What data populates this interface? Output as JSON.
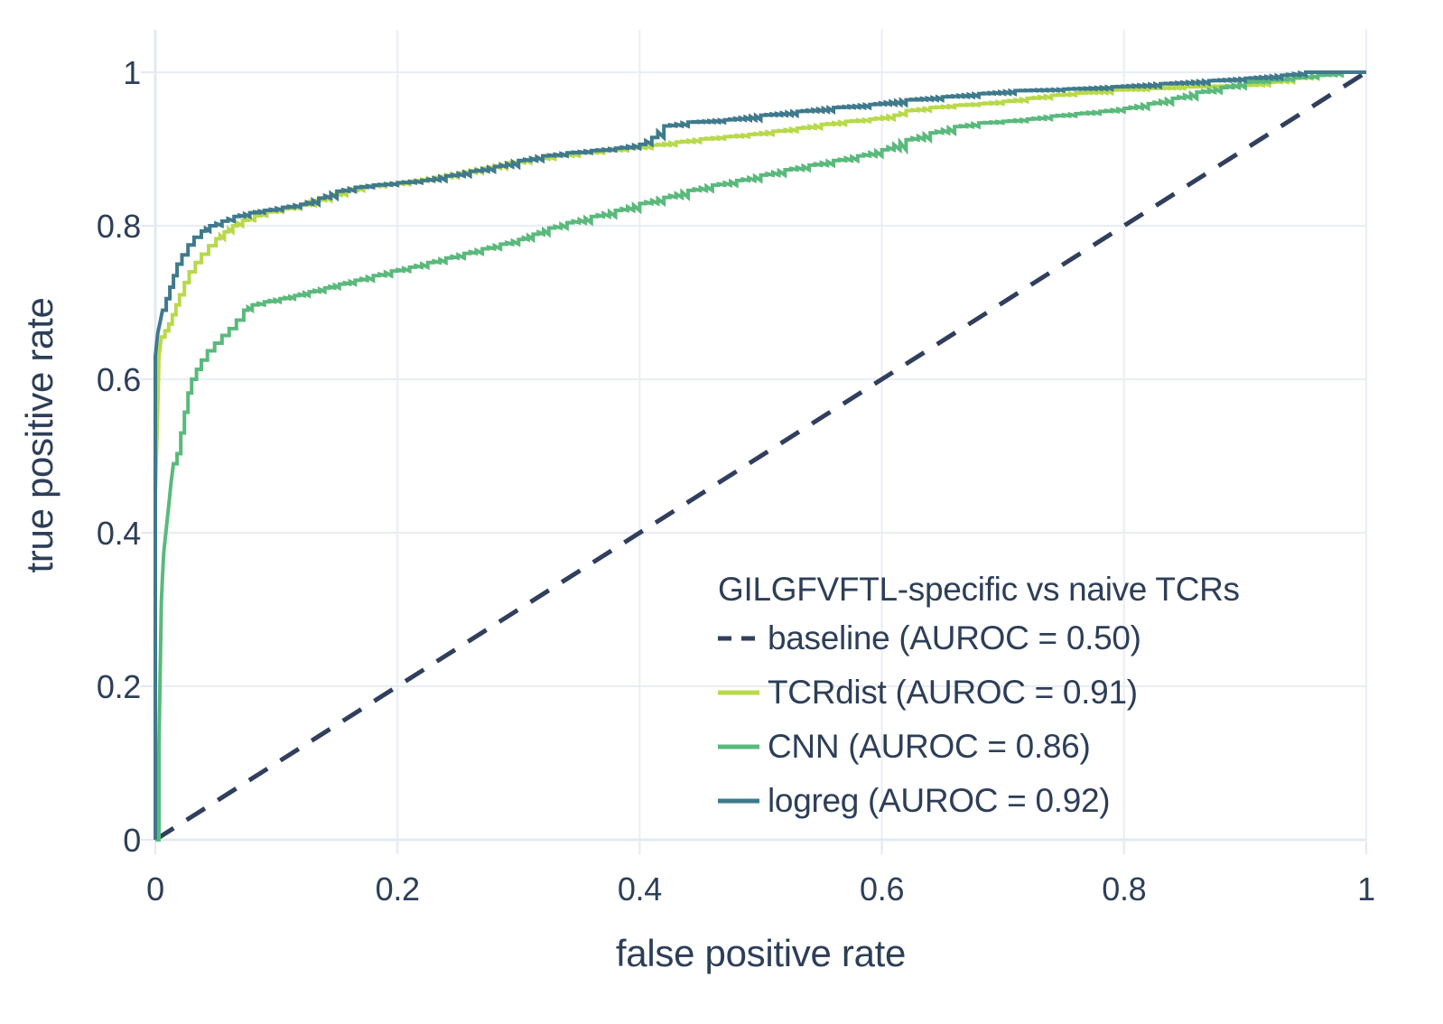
{
  "chart_data": {
    "type": "line",
    "subtype": "roc-curves",
    "title": "",
    "xlabel": "false positive rate",
    "ylabel": "true positive rate",
    "xlim": [
      0,
      1
    ],
    "ylim": [
      0,
      1
    ],
    "grid": true,
    "x_ticks": [
      0,
      0.2,
      0.4,
      0.6,
      0.8,
      1
    ],
    "x_tick_labels": [
      "0",
      "0.2",
      "0.4",
      "0.6",
      "0.8",
      "1"
    ],
    "y_ticks": [
      0,
      0.2,
      0.4,
      0.6,
      0.8,
      1
    ],
    "y_tick_labels": [
      "0",
      "0.2",
      "0.4",
      "0.6",
      "0.8",
      "1"
    ],
    "legend": {
      "title": "GILGFVFTL-specific vs naive TCRs",
      "position": "lower right"
    },
    "series": [
      {
        "name": "baseline",
        "auroc": 0.5,
        "legend_label": "baseline (AUROC = 0.50)",
        "style": "dashed",
        "color": "#303f5c",
        "points": [
          [
            0,
            0
          ],
          [
            1,
            1
          ]
        ]
      },
      {
        "name": "TCRdist",
        "auroc": 0.91,
        "legend_label": "TCRdist (AUROC = 0.91)",
        "style": "step",
        "color": "#b8d94a",
        "points": [
          [
            0,
            0
          ],
          [
            0,
            0.45
          ],
          [
            0.002,
            0.56
          ],
          [
            0.003,
            0.63
          ],
          [
            0.005,
            0.655
          ],
          [
            0.008,
            0.663
          ],
          [
            0.011,
            0.672
          ],
          [
            0.014,
            0.684
          ],
          [
            0.017,
            0.697
          ],
          [
            0.02,
            0.71
          ],
          [
            0.024,
            0.726
          ],
          [
            0.028,
            0.74
          ],
          [
            0.033,
            0.752
          ],
          [
            0.038,
            0.763
          ],
          [
            0.044,
            0.774
          ],
          [
            0.05,
            0.783
          ],
          [
            0.057,
            0.792
          ],
          [
            0.064,
            0.8
          ],
          [
            0.072,
            0.807
          ],
          [
            0.082,
            0.813
          ],
          [
            0.092,
            0.818
          ],
          [
            0.105,
            0.822
          ],
          [
            0.12,
            0.827
          ],
          [
            0.132,
            0.833
          ],
          [
            0.145,
            0.84
          ],
          [
            0.158,
            0.846
          ],
          [
            0.172,
            0.851
          ],
          [
            0.19,
            0.854
          ],
          [
            0.21,
            0.858
          ],
          [
            0.23,
            0.863
          ],
          [
            0.25,
            0.869
          ],
          [
            0.27,
            0.875
          ],
          [
            0.29,
            0.882
          ],
          [
            0.31,
            0.887
          ],
          [
            0.33,
            0.891
          ],
          [
            0.35,
            0.895
          ],
          [
            0.37,
            0.898
          ],
          [
            0.39,
            0.901
          ],
          [
            0.41,
            0.905
          ],
          [
            0.43,
            0.909
          ],
          [
            0.45,
            0.913
          ],
          [
            0.47,
            0.916
          ],
          [
            0.49,
            0.919
          ],
          [
            0.51,
            0.923
          ],
          [
            0.53,
            0.927
          ],
          [
            0.55,
            0.932
          ],
          [
            0.57,
            0.936
          ],
          [
            0.59,
            0.939
          ],
          [
            0.61,
            0.944
          ],
          [
            0.62,
            0.95
          ],
          [
            0.64,
            0.954
          ],
          [
            0.66,
            0.957
          ],
          [
            0.68,
            0.959
          ],
          [
            0.7,
            0.962
          ],
          [
            0.72,
            0.966
          ],
          [
            0.74,
            0.97
          ],
          [
            0.76,
            0.973
          ],
          [
            0.79,
            0.977
          ],
          [
            0.82,
            0.979
          ],
          [
            0.85,
            0.981
          ],
          [
            0.88,
            0.982
          ],
          [
            0.9,
            0.983
          ],
          [
            0.92,
            0.987
          ],
          [
            0.94,
            0.992
          ],
          [
            0.96,
            0.997
          ],
          [
            0.97,
            1
          ],
          [
            1,
            1
          ]
        ]
      },
      {
        "name": "CNN",
        "auroc": 0.86,
        "legend_label": "CNN (AUROC = 0.86)",
        "style": "step",
        "color": "#5ab97c",
        "points": [
          [
            0,
            0
          ],
          [
            0.003,
            0.12
          ],
          [
            0.004,
            0.22
          ],
          [
            0.005,
            0.31
          ],
          [
            0.006,
            0.345
          ],
          [
            0.007,
            0.375
          ],
          [
            0.009,
            0.405
          ],
          [
            0.011,
            0.435
          ],
          [
            0.013,
            0.465
          ],
          [
            0.015,
            0.49
          ],
          [
            0.018,
            0.503
          ],
          [
            0.021,
            0.53
          ],
          [
            0.024,
            0.557
          ],
          [
            0.027,
            0.582
          ],
          [
            0.03,
            0.6
          ],
          [
            0.034,
            0.613
          ],
          [
            0.038,
            0.625
          ],
          [
            0.043,
            0.637
          ],
          [
            0.049,
            0.647
          ],
          [
            0.055,
            0.657
          ],
          [
            0.061,
            0.666
          ],
          [
            0.067,
            0.677
          ],
          [
            0.073,
            0.69
          ],
          [
            0.08,
            0.697
          ],
          [
            0.09,
            0.701
          ],
          [
            0.103,
            0.705
          ],
          [
            0.115,
            0.709
          ],
          [
            0.127,
            0.714
          ],
          [
            0.14,
            0.719
          ],
          [
            0.152,
            0.724
          ],
          [
            0.165,
            0.729
          ],
          [
            0.18,
            0.735
          ],
          [
            0.195,
            0.741
          ],
          [
            0.21,
            0.746
          ],
          [
            0.225,
            0.752
          ],
          [
            0.24,
            0.758
          ],
          [
            0.255,
            0.764
          ],
          [
            0.27,
            0.77
          ],
          [
            0.285,
            0.776
          ],
          [
            0.3,
            0.782
          ],
          [
            0.312,
            0.789
          ],
          [
            0.325,
            0.797
          ],
          [
            0.34,
            0.804
          ],
          [
            0.36,
            0.812
          ],
          [
            0.38,
            0.82
          ],
          [
            0.4,
            0.829
          ],
          [
            0.42,
            0.837
          ],
          [
            0.44,
            0.846
          ],
          [
            0.46,
            0.853
          ],
          [
            0.48,
            0.859
          ],
          [
            0.5,
            0.866
          ],
          [
            0.52,
            0.873
          ],
          [
            0.54,
            0.879
          ],
          [
            0.56,
            0.885
          ],
          [
            0.58,
            0.891
          ],
          [
            0.6,
            0.899
          ],
          [
            0.62,
            0.912
          ],
          [
            0.64,
            0.921
          ],
          [
            0.66,
            0.929
          ],
          [
            0.68,
            0.934
          ],
          [
            0.7,
            0.936
          ],
          [
            0.72,
            0.939
          ],
          [
            0.74,
            0.943
          ],
          [
            0.76,
            0.946
          ],
          [
            0.78,
            0.949
          ],
          [
            0.8,
            0.953
          ],
          [
            0.82,
            0.959
          ],
          [
            0.84,
            0.966
          ],
          [
            0.86,
            0.974
          ],
          [
            0.88,
            0.98
          ],
          [
            0.9,
            0.987
          ],
          [
            0.92,
            0.99
          ],
          [
            0.94,
            0.993
          ],
          [
            0.96,
            0.996
          ],
          [
            0.98,
            1
          ],
          [
            1,
            1
          ]
        ]
      },
      {
        "name": "logreg",
        "auroc": 0.92,
        "legend_label": "logreg (AUROC = 0.92)",
        "style": "step",
        "color": "#3f7a8c",
        "points": [
          [
            0,
            0
          ],
          [
            0,
            0.63
          ],
          [
            0.002,
            0.66
          ],
          [
            0.004,
            0.675
          ],
          [
            0.006,
            0.69
          ],
          [
            0.009,
            0.705
          ],
          [
            0.012,
            0.72
          ],
          [
            0.015,
            0.735
          ],
          [
            0.018,
            0.75
          ],
          [
            0.022,
            0.762
          ],
          [
            0.027,
            0.775
          ],
          [
            0.032,
            0.785
          ],
          [
            0.038,
            0.793
          ],
          [
            0.045,
            0.8
          ],
          [
            0.055,
            0.806
          ],
          [
            0.065,
            0.812
          ],
          [
            0.078,
            0.817
          ],
          [
            0.09,
            0.82
          ],
          [
            0.105,
            0.824
          ],
          [
            0.12,
            0.828
          ],
          [
            0.135,
            0.836
          ],
          [
            0.15,
            0.845
          ],
          [
            0.165,
            0.85
          ],
          [
            0.18,
            0.853
          ],
          [
            0.2,
            0.856
          ],
          [
            0.22,
            0.859
          ],
          [
            0.24,
            0.865
          ],
          [
            0.26,
            0.871
          ],
          [
            0.28,
            0.877
          ],
          [
            0.3,
            0.885
          ],
          [
            0.32,
            0.891
          ],
          [
            0.34,
            0.895
          ],
          [
            0.36,
            0.898
          ],
          [
            0.38,
            0.901
          ],
          [
            0.4,
            0.906
          ],
          [
            0.41,
            0.915
          ],
          [
            0.42,
            0.93
          ],
          [
            0.44,
            0.935
          ],
          [
            0.47,
            0.938
          ],
          [
            0.5,
            0.944
          ],
          [
            0.53,
            0.949
          ],
          [
            0.56,
            0.954
          ],
          [
            0.59,
            0.958
          ],
          [
            0.62,
            0.964
          ],
          [
            0.65,
            0.968
          ],
          [
            0.68,
            0.972
          ],
          [
            0.71,
            0.976
          ],
          [
            0.75,
            0.978
          ],
          [
            0.79,
            0.981
          ],
          [
            0.83,
            0.985
          ],
          [
            0.87,
            0.989
          ],
          [
            0.9,
            0.992
          ],
          [
            0.93,
            0.996
          ],
          [
            0.95,
            1
          ],
          [
            1,
            1
          ]
        ]
      }
    ]
  },
  "colors": {
    "text": "#2d3e58",
    "grid": "#e9edf5",
    "axis_line": "#e3e8f1",
    "background": "#ffffff"
  }
}
